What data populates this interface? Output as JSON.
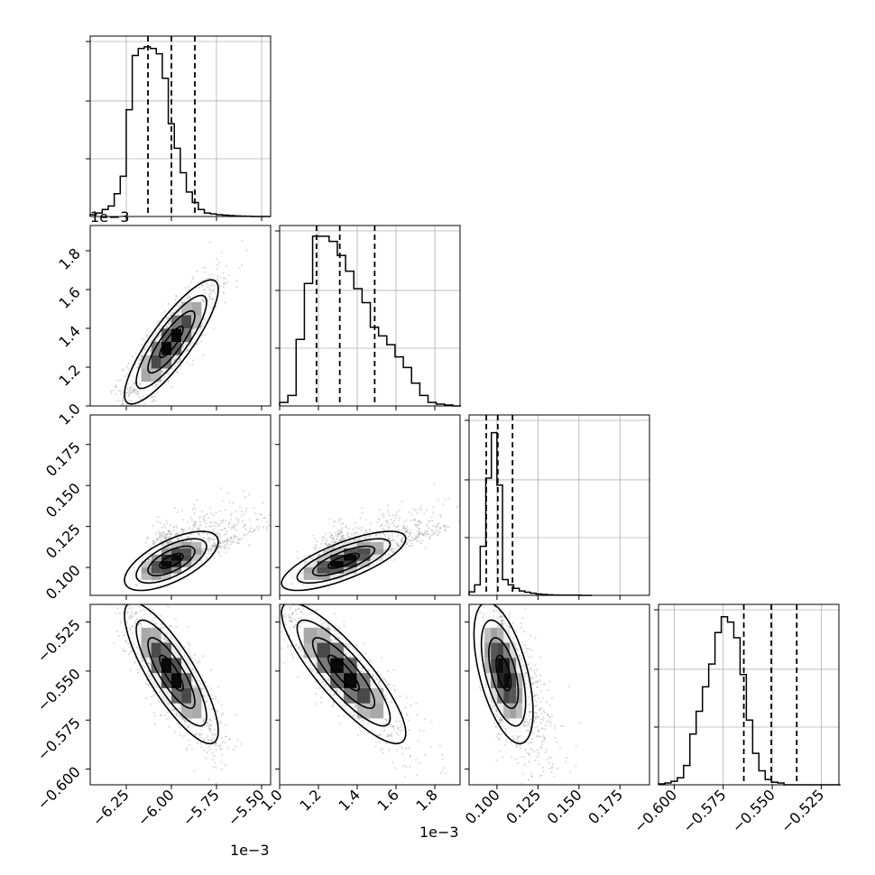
{
  "chart_data": {
    "type": "corner",
    "grid": true,
    "colors": {
      "hist": "#000000",
      "grid": "#b0b0b0",
      "scatter": "#9a9a9a",
      "density": "#000000"
    },
    "params": [
      {
        "range": [
          -6.45,
          -5.45
        ],
        "ticks": [
          -6.25,
          -6.0,
          -5.75,
          -5.5
        ],
        "tick_labels": [
          "−6.25",
          "−6.00",
          "−5.75",
          "−5.50"
        ],
        "offset_label": "1e−3",
        "hist_left_offset_label": "",
        "quantiles": [
          -6.13,
          -6.0,
          -5.87
        ],
        "bin_width": 0.0333,
        "hist": [
          0.01,
          0.02,
          0.04,
          0.06,
          0.13,
          0.23,
          0.61,
          0.92,
          0.96,
          0.97,
          0.96,
          0.93,
          0.79,
          0.53,
          0.39,
          0.25,
          0.14,
          0.08,
          0.04,
          0.02,
          0.015,
          0.01,
          0.008,
          0.005,
          0.003,
          0.002,
          0.001,
          0.0,
          0.0,
          0.0
        ]
      },
      {
        "range": [
          1.0,
          1.93
        ],
        "ticks": [
          1.0,
          1.2,
          1.4,
          1.6,
          1.8
        ],
        "tick_labels": [
          "1.0",
          "1.2",
          "1.4",
          "1.6",
          "1.8"
        ],
        "offset_label": "1e−3",
        "quantiles": [
          1.19,
          1.31,
          1.49
        ],
        "bin_width": 0.0425,
        "hist": [
          0.02,
          0.06,
          0.38,
          0.7,
          0.97,
          0.97,
          0.94,
          0.86,
          0.77,
          0.67,
          0.59,
          0.45,
          0.4,
          0.35,
          0.28,
          0.22,
          0.13,
          0.06,
          0.02,
          0.01,
          0.005,
          0.0
        ]
      },
      {
        "range": [
          0.083,
          0.193
        ],
        "ticks": [
          0.1,
          0.125,
          0.15,
          0.175
        ],
        "tick_labels": [
          "0.100",
          "0.125",
          "0.150",
          "0.175"
        ],
        "quantiles": [
          0.0935,
          0.1005,
          0.1095
        ],
        "bin_width": 0.0034,
        "hist": [
          0.02,
          0.06,
          0.28,
          0.67,
          0.93,
          0.63,
          0.09,
          0.06,
          0.04,
          0.025,
          0.018,
          0.012,
          0.008,
          0.005,
          0.003,
          0.002,
          0.001,
          0.001,
          0.001,
          0.001,
          0.0,
          0.0
        ]
      },
      {
        "range": [
          -0.608,
          -0.516
        ],
        "ticks": [
          -0.6,
          -0.575,
          -0.55,
          -0.525
        ],
        "tick_labels": [
          "−0.600",
          "−0.575",
          "−0.550",
          "−0.525"
        ],
        "quantiles": [
          -0.5645,
          -0.5505,
          -0.5375
        ],
        "bin_width": 0.0032,
        "hist": [
          0.005,
          0.01,
          0.02,
          0.04,
          0.11,
          0.29,
          0.42,
          0.56,
          0.69,
          0.87,
          0.96,
          0.93,
          0.84,
          0.63,
          0.37,
          0.18,
          0.08,
          0.03,
          0.015,
          0.01,
          0.0,
          0.0,
          0.0,
          0.0,
          0.0,
          0.0,
          0.0,
          0.0,
          0.0
        ]
      }
    ],
    "pairs": [
      {
        "row": 1,
        "col": 0,
        "mean": [
          -6.0,
          1.33
        ],
        "sd": [
          0.13,
          0.16
        ],
        "corr": 0.85,
        "tail": [
          0,
          0
        ]
      },
      {
        "row": 2,
        "col": 0,
        "mean": [
          -6.0,
          0.104
        ],
        "sd": [
          0.13,
          0.009
        ],
        "corr": 0.65,
        "tail": [
          1,
          1
        ]
      },
      {
        "row": 2,
        "col": 1,
        "mean": [
          1.33,
          0.104
        ],
        "sd": [
          0.16,
          0.009
        ],
        "corr": 0.75,
        "tail": [
          1,
          1
        ]
      },
      {
        "row": 3,
        "col": 0,
        "mean": [
          -6.0,
          -0.551
        ],
        "sd": [
          0.13,
          0.018
        ],
        "corr": -0.82,
        "tail": [
          0,
          0
        ]
      },
      {
        "row": 3,
        "col": 1,
        "mean": [
          1.33,
          -0.551
        ],
        "sd": [
          0.16,
          0.018
        ],
        "corr": -0.85,
        "tail": [
          0,
          0
        ]
      },
      {
        "row": 3,
        "col": 2,
        "mean": [
          0.104,
          -0.551
        ],
        "sd": [
          0.009,
          0.018
        ],
        "corr": -0.55,
        "tail": [
          1,
          0
        ]
      }
    ]
  }
}
